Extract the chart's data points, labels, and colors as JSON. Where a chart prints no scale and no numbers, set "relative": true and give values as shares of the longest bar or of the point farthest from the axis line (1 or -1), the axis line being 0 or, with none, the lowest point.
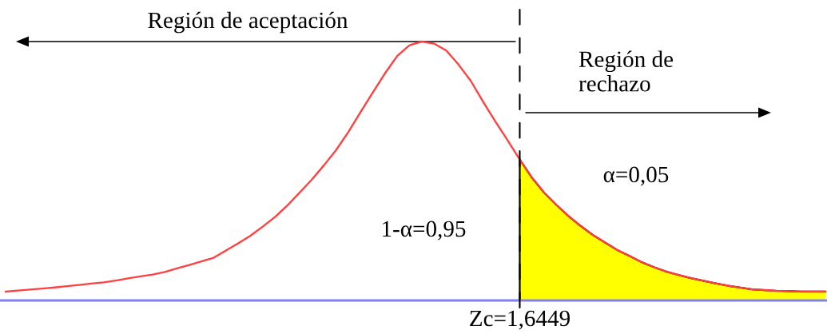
{
  "chart_data": {
    "type": "line",
    "relative": true,
    "categories": [
      null,
      null,
      null,
      null,
      null,
      null,
      null,
      null,
      null,
      null,
      null,
      null,
      null,
      null,
      null,
      null,
      null,
      null,
      null,
      null,
      null,
      null,
      null,
      null,
      null,
      null,
      null,
      null,
      null,
      null,
      null,
      null,
      null,
      null,
      null,
      null,
      null,
      null,
      null,
      null,
      null,
      null,
      null,
      null,
      null,
      null,
      null,
      null,
      null,
      null,
      null,
      null,
      null,
      null,
      null,
      null,
      null,
      null,
      null,
      null,
      null,
      null,
      null,
      null,
      null,
      null,
      null,
      null
    ],
    "series": [
      {
        "color": "#ff4040",
        "values": [
          0.034,
          0.038,
          0.042,
          0.046,
          0.05,
          0.055,
          0.06,
          0.065,
          0.07,
          0.077,
          0.085,
          0.093,
          0.1,
          0.11,
          0.124,
          0.137,
          0.151,
          0.165,
          0.193,
          0.221,
          0.25,
          0.285,
          0.322,
          0.366,
          0.416,
          0.466,
          0.522,
          0.581,
          0.651,
          0.728,
          0.804,
          0.878,
          0.945,
          0.986,
          1.0,
          0.992,
          0.965,
          0.911,
          0.848,
          0.768,
          0.692,
          0.619,
          0.544,
          0.474,
          0.416,
          0.369,
          0.325,
          0.287,
          0.252,
          0.223,
          0.194,
          0.171,
          0.147,
          0.128,
          0.111,
          0.098,
          0.086,
          0.076,
          0.066,
          0.057,
          0.05,
          0.043,
          0.04,
          0.037,
          0.036,
          0.034,
          0.034,
          0.034
        ]
      },
      {
        "type": "area",
        "color": "#ffff00",
        "values": [
          null,
          null,
          null,
          null,
          null,
          null,
          null,
          null,
          null,
          null,
          null,
          null,
          null,
          null,
          null,
          null,
          null,
          null,
          null,
          null,
          null,
          null,
          null,
          null,
          null,
          null,
          null,
          null,
          null,
          null,
          null,
          null,
          null,
          null,
          null,
          null,
          null,
          null,
          null,
          null,
          null,
          null,
          0.544,
          0.474,
          0.416,
          0.369,
          0.325,
          0.287,
          0.252,
          0.223,
          0.194,
          0.171,
          0.147,
          0.128,
          0.111,
          0.098,
          0.086,
          0.076,
          0.066,
          0.057,
          0.05,
          0.043,
          0.04,
          0.037,
          0.036,
          0.034,
          0.034,
          0.034
        ]
      }
    ],
    "annotations": [
      "Región de aceptación",
      "Región de\nrechazo",
      "α=0,05",
      "1-α=0,95",
      "Zc=1,6449"
    ]
  }
}
